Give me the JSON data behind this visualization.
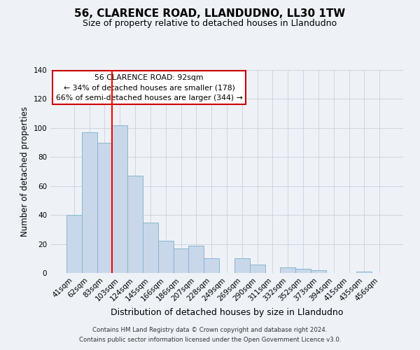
{
  "title": "56, CLARENCE ROAD, LLANDUDNO, LL30 1TW",
  "subtitle": "Size of property relative to detached houses in Llandudno",
  "xlabel": "Distribution of detached houses by size in Llandudno",
  "ylabel": "Number of detached properties",
  "bar_labels": [
    "41sqm",
    "62sqm",
    "83sqm",
    "103sqm",
    "124sqm",
    "145sqm",
    "166sqm",
    "186sqm",
    "207sqm",
    "228sqm",
    "249sqm",
    "269sqm",
    "290sqm",
    "311sqm",
    "332sqm",
    "352sqm",
    "373sqm",
    "394sqm",
    "415sqm",
    "435sqm",
    "456sqm"
  ],
  "bar_values": [
    40,
    97,
    90,
    102,
    67,
    35,
    22,
    17,
    19,
    10,
    0,
    10,
    6,
    0,
    4,
    3,
    2,
    0,
    0,
    1,
    0
  ],
  "bar_color": "#c8d8ea",
  "bar_edge_color": "#8ab4cc",
  "red_line_x": 2.5,
  "annotation_title": "56 CLARENCE ROAD: 92sqm",
  "annotation_line1": "← 34% of detached houses are smaller (178)",
  "annotation_line2": "66% of semi-detached houses are larger (344) →",
  "ylim": [
    0,
    140
  ],
  "yticks": [
    0,
    20,
    40,
    60,
    80,
    100,
    120,
    140
  ],
  "footer1": "Contains HM Land Registry data © Crown copyright and database right 2024.",
  "footer2": "Contains public sector information licensed under the Open Government Licence v3.0.",
  "background_color": "#eef2f7",
  "plot_bg_color": "#eef2f7",
  "title_fontsize": 11,
  "subtitle_fontsize": 9,
  "annotation_box_color": "white",
  "annotation_box_edge": "#cc0000",
  "grid_color": "#c8d0dc"
}
